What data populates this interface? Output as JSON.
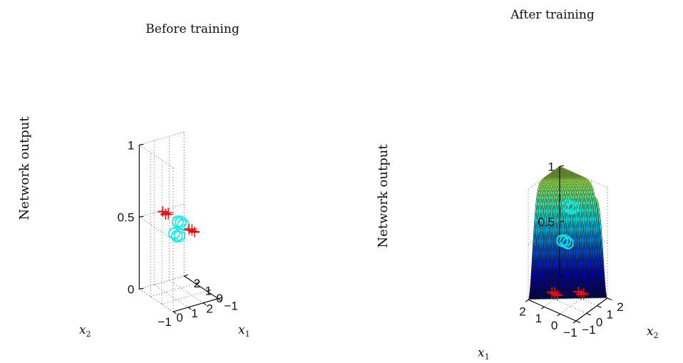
{
  "chart_data": [
    {
      "type": "scatter",
      "title": "Before training",
      "zlabel": "Network output",
      "xlabel": "x",
      "xlabel_sub": "1",
      "ylabel": "x",
      "ylabel_sub": "2",
      "xlim": [
        -1,
        2
      ],
      "ylim": [
        -1,
        2
      ],
      "zlim": [
        0,
        1
      ],
      "x_ticks": [
        "−1",
        "0",
        "1",
        "2"
      ],
      "y_ticks": [
        "−1",
        "0",
        "1",
        "2"
      ],
      "z_ticks": [
        "0",
        "0.5",
        "1"
      ],
      "grid": true,
      "series": [
        {
          "marker": "o",
          "color": "#19e6e6",
          "points": [
            [
              0,
              0,
              0.45
            ],
            [
              1,
              1,
              0.45
            ]
          ]
        },
        {
          "marker": "+",
          "color": "#e01010",
          "points": [
            [
              0,
              1,
              0.55
            ],
            [
              1,
              0,
              0.45
            ]
          ]
        }
      ]
    },
    {
      "type": "surface",
      "title": "After training",
      "zlabel": "Network output",
      "xlabel": "x",
      "xlabel_sub": "1",
      "ylabel": "x",
      "ylabel_sub": "2",
      "xlim": [
        -1,
        2
      ],
      "ylim": [
        -1,
        2
      ],
      "zlim": [
        0,
        1
      ],
      "x_ticks": [
        "−1",
        "0",
        "1",
        "2"
      ],
      "y_ticks": [
        "−1",
        "0",
        "1",
        "2"
      ],
      "z_ticks": [
        "0",
        "0.5",
        "1"
      ],
      "grid": true,
      "series": [
        {
          "marker": "o",
          "color": "#19e6e6",
          "points": [
            [
              0,
              0,
              0.9
            ],
            [
              1,
              1,
              0.45
            ]
          ]
        },
        {
          "marker": "+",
          "color": "#e01010",
          "points": [
            [
              0,
              1,
              0.05
            ],
            [
              1,
              0,
              0.05
            ]
          ]
        }
      ]
    }
  ]
}
